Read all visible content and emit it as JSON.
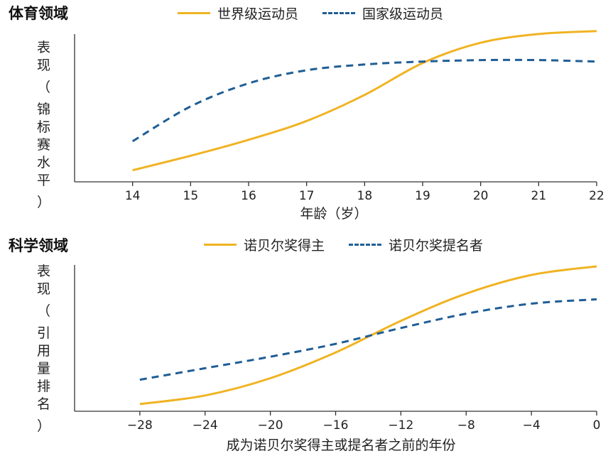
{
  "colors": {
    "gold": "#F0B323",
    "blue": "#1F5E96",
    "axis": "#333333"
  },
  "chart_data": [
    {
      "type": "line",
      "title": "体育领域",
      "xlabel": "年龄（岁）",
      "ylabel": "表现（锦标赛水平）",
      "xlim": [
        13.0,
        22.0
      ],
      "ylim": [
        0,
        100
      ],
      "xticks": [
        14,
        15,
        16,
        17,
        18,
        19,
        20,
        21,
        22
      ],
      "series": [
        {
          "name": "世界级运动员",
          "style": "solid",
          "color": "#F0B323",
          "x": [
            14,
            15,
            16,
            17,
            18,
            19,
            20,
            21,
            22
          ],
          "y": [
            8,
            18,
            29,
            42,
            60,
            82,
            96,
            102,
            104
          ]
        },
        {
          "name": "国家级运动员",
          "style": "dashed",
          "color": "#1F5E96",
          "x": [
            14,
            15,
            16,
            17,
            18,
            19,
            20,
            21,
            22
          ],
          "y": [
            28,
            52,
            68,
            77,
            81,
            83,
            84,
            84,
            83
          ]
        }
      ]
    },
    {
      "type": "line",
      "title": "科学领域",
      "xlabel": "成为诺贝尔奖得主或提名者之前的年份",
      "ylabel": "表现（引用量排名）",
      "xlim": [
        -32,
        0
      ],
      "ylim": [
        0,
        100
      ],
      "xticks": [
        -28,
        -24,
        -20,
        -16,
        -12,
        -8,
        -4,
        0
      ],
      "series": [
        {
          "name": "诺贝尔奖得主",
          "style": "solid",
          "color": "#F0B323",
          "x": [
            -28,
            -24,
            -20,
            -16,
            -12,
            -8,
            -4,
            0
          ],
          "y": [
            5,
            11,
            23,
            41,
            63,
            82,
            95,
            101
          ]
        },
        {
          "name": "诺贝尔奖提名者",
          "style": "dashed",
          "color": "#1F5E96",
          "x": [
            -28,
            -24,
            -20,
            -16,
            -12,
            -8,
            -4,
            0
          ],
          "y": [
            22,
            30,
            38,
            47,
            58,
            68,
            75,
            78
          ]
        }
      ]
    }
  ]
}
